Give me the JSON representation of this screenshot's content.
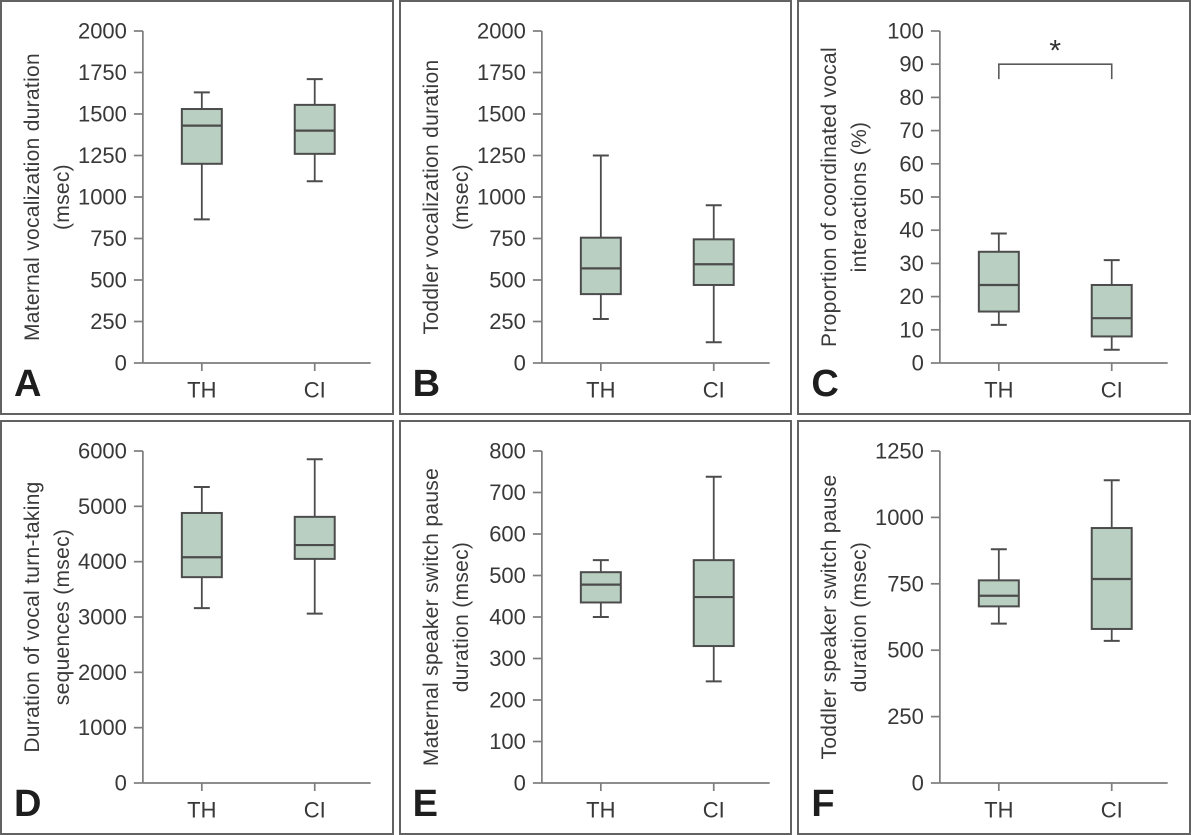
{
  "style": {
    "box_fill": "#b9cfc1",
    "box_stroke": "#4c4c4c",
    "axis_color": "#7d7d7d",
    "text_color": "#383838",
    "panel_letter_color": "#1e1e1e",
    "significance_color": "#5a5a5a"
  },
  "chart_data": [
    {
      "type": "box",
      "panel_label": "A",
      "ylabel_lines": [
        "Maternal vocalization duration",
        "(msec)"
      ],
      "ylim": [
        0,
        2000
      ],
      "ytick_step": 250,
      "categories": [
        "TH",
        "CI"
      ],
      "boxes": [
        {
          "category": "TH",
          "whisker_low": 865,
          "q1": 1200,
          "median": 1430,
          "q3": 1530,
          "whisker_high": 1630
        },
        {
          "category": "CI",
          "whisker_low": 1095,
          "q1": 1260,
          "median": 1400,
          "q3": 1555,
          "whisker_high": 1710
        }
      ],
      "significance": null
    },
    {
      "type": "box",
      "panel_label": "B",
      "ylabel_lines": [
        "Toddler vocalization duration",
        "(msec)"
      ],
      "ylim": [
        0,
        2000
      ],
      "ytick_step": 250,
      "categories": [
        "TH",
        "CI"
      ],
      "boxes": [
        {
          "category": "TH",
          "whisker_low": 265,
          "q1": 415,
          "median": 570,
          "q3": 755,
          "whisker_high": 1250
        },
        {
          "category": "CI",
          "whisker_low": 125,
          "q1": 470,
          "median": 595,
          "q3": 745,
          "whisker_high": 950
        }
      ],
      "significance": null
    },
    {
      "type": "box",
      "panel_label": "C",
      "ylabel_lines": [
        "Proportion of coordinated vocal",
        "interactions (%)"
      ],
      "ylim": [
        0,
        100
      ],
      "ytick_step": 10,
      "categories": [
        "TH",
        "CI"
      ],
      "boxes": [
        {
          "category": "TH",
          "whisker_low": 11.5,
          "q1": 15.5,
          "median": 23.5,
          "q3": 33.5,
          "whisker_high": 39
        },
        {
          "category": "CI",
          "whisker_low": 4,
          "q1": 8,
          "median": 13.5,
          "q3": 23.5,
          "whisker_high": 31
        }
      ],
      "significance": {
        "label": "*",
        "between": [
          "TH",
          "CI"
        ],
        "bar_value": 90,
        "tip_value": 85.5
      }
    },
    {
      "type": "box",
      "panel_label": "D",
      "ylabel_lines": [
        "Duration of vocal turn-taking",
        "sequences (msec)"
      ],
      "ylim": [
        0,
        6000
      ],
      "ytick_step": 1000,
      "categories": [
        "TH",
        "CI"
      ],
      "boxes": [
        {
          "category": "TH",
          "whisker_low": 3160,
          "q1": 3720,
          "median": 4080,
          "q3": 4880,
          "whisker_high": 5350
        },
        {
          "category": "CI",
          "whisker_low": 3060,
          "q1": 4050,
          "median": 4300,
          "q3": 4810,
          "whisker_high": 5850
        }
      ],
      "significance": null
    },
    {
      "type": "box",
      "panel_label": "E",
      "ylabel_lines": [
        "Maternal speaker switch pause",
        "duration (msec)"
      ],
      "ylim": [
        0,
        800
      ],
      "ytick_step": 100,
      "categories": [
        "TH",
        "CI"
      ],
      "boxes": [
        {
          "category": "TH",
          "whisker_low": 400,
          "q1": 435,
          "median": 478,
          "q3": 508,
          "whisker_high": 537
        },
        {
          "category": "CI",
          "whisker_low": 245,
          "q1": 330,
          "median": 448,
          "q3": 537,
          "whisker_high": 738
        }
      ],
      "significance": null
    },
    {
      "type": "box",
      "panel_label": "F",
      "ylabel_lines": [
        "Toddler speaker switch pause",
        "duration (msec)"
      ],
      "ylim": [
        0,
        1250
      ],
      "ytick_step": 250,
      "categories": [
        "TH",
        "CI"
      ],
      "boxes": [
        {
          "category": "TH",
          "whisker_low": 600,
          "q1": 665,
          "median": 705,
          "q3": 763,
          "whisker_high": 880
        },
        {
          "category": "CI",
          "whisker_low": 535,
          "q1": 580,
          "median": 768,
          "q3": 960,
          "whisker_high": 1140
        }
      ],
      "significance": null
    }
  ]
}
